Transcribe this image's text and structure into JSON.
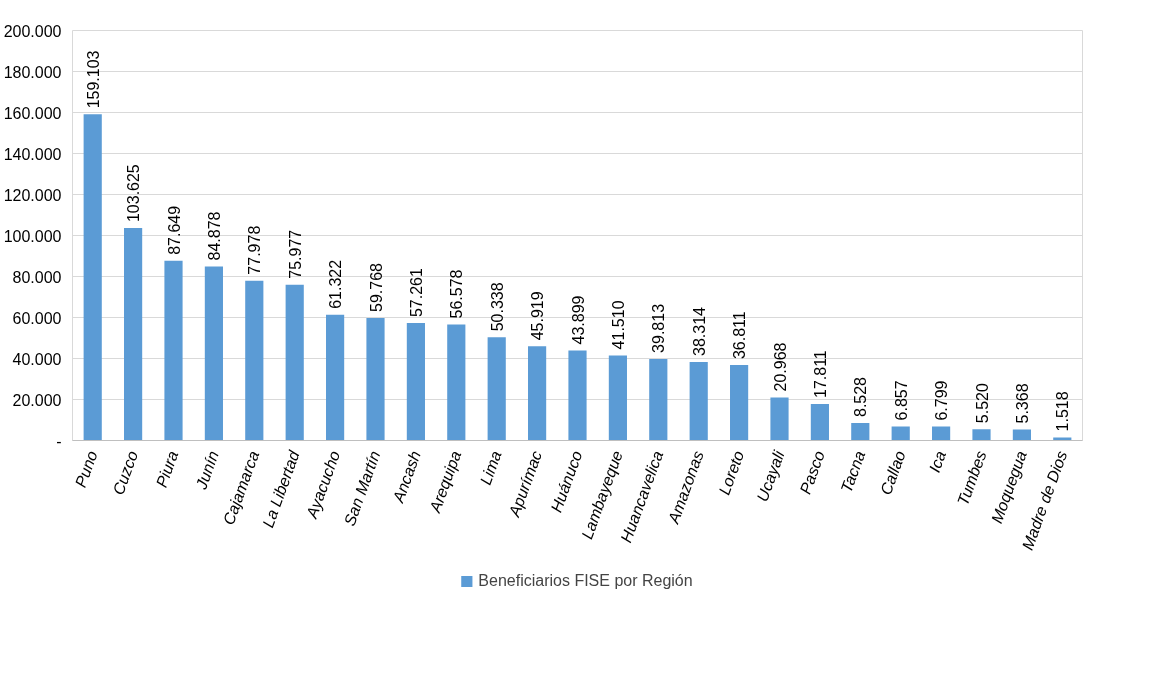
{
  "chart_data": {
    "type": "bar",
    "categories": [
      "Puno",
      "Cuzco",
      "Piura",
      "Junín",
      "Cajamarca",
      "La Libertad",
      "Ayacucho",
      "San Martín",
      "Ancash",
      "Arequipa",
      "Lima",
      "Apurímac",
      "Huánuco",
      "Lambayeque",
      "Huancavelica",
      "Amazonas",
      "Loreto",
      "Ucayali",
      "Pasco",
      "Tacna",
      "Callao",
      "Ica",
      "Tumbes",
      "Moquegua",
      "Madre de Dios"
    ],
    "series": [
      {
        "name": "Beneficiarios FISE por Región",
        "color": "#5b9bd5",
        "values": [
          159103,
          103625,
          87649,
          84878,
          77978,
          75977,
          61322,
          59768,
          57261,
          56578,
          50338,
          45919,
          43899,
          41510,
          39813,
          38314,
          36811,
          20968,
          17811,
          8528,
          6857,
          6799,
          5520,
          5368,
          1518
        ],
        "value_labels": [
          "159.103",
          "103.625",
          "87.649",
          "84.878",
          "77.978",
          "75.977",
          "61.322",
          "59.768",
          "57.261",
          "56.578",
          "50.338",
          "45.919",
          "43.899",
          "41.510",
          "39.813",
          "38.314",
          "36.811",
          "20.968",
          "17.811",
          "8.528",
          "6.857",
          "6.799",
          "5.520",
          "5.368",
          "1.518"
        ]
      }
    ],
    "ylim": [
      0,
      200000
    ],
    "yticks": [
      {
        "value": 0,
        "label": "-"
      },
      {
        "value": 20000,
        "label": "20.000"
      },
      {
        "value": 40000,
        "label": "40.000"
      },
      {
        "value": 60000,
        "label": "60.000"
      },
      {
        "value": 80000,
        "label": "80.000"
      },
      {
        "value": 100000,
        "label": "100.000"
      },
      {
        "value": 120000,
        "label": "120.000"
      },
      {
        "value": 140000,
        "label": "140.000"
      },
      {
        "value": 160000,
        "label": "160.000"
      },
      {
        "value": 180000,
        "label": "180.000"
      },
      {
        "value": 200000,
        "label": "200.000"
      }
    ],
    "grid": "y",
    "legend": "bottom"
  }
}
